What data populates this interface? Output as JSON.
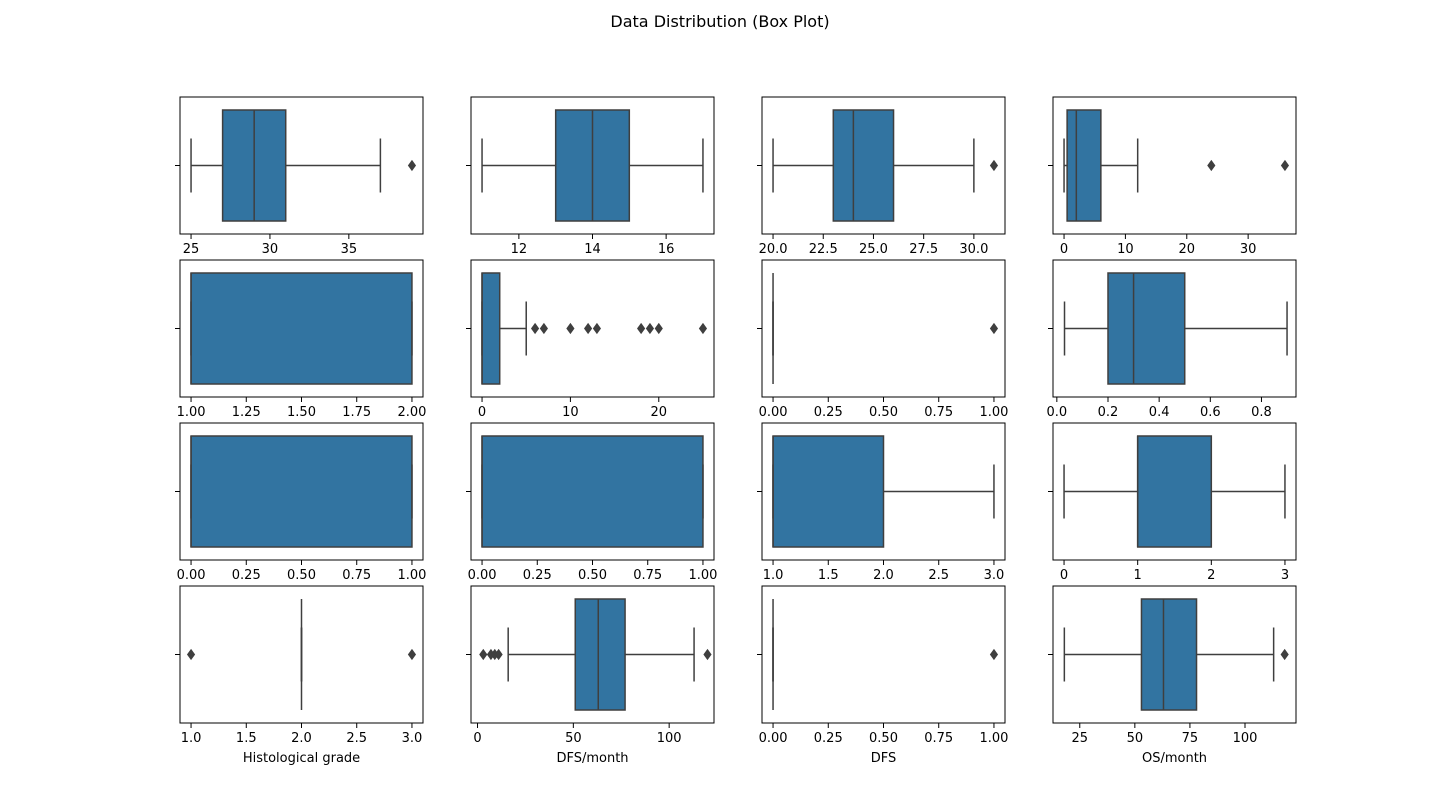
{
  "title": "Data Distribution (Box Plot)",
  "colors": {
    "box_fill": "#3274a1",
    "line": "#3f3f3f",
    "frame": "#000000"
  },
  "chart_data": [
    {
      "type": "box",
      "xlabel": "",
      "xlim": [
        24.3,
        39.7
      ],
      "ticks": [
        25,
        30,
        35
      ],
      "tick_labels": [
        "25",
        "30",
        "35"
      ],
      "whisker_low": 25,
      "q1": 27,
      "median": 29,
      "q3": 31,
      "whisker_high": 37,
      "outliers": [
        39
      ]
    },
    {
      "type": "box",
      "xlabel": "",
      "xlim": [
        10.7,
        17.3
      ],
      "ticks": [
        12,
        14,
        16
      ],
      "tick_labels": [
        "12",
        "14",
        "16"
      ],
      "whisker_low": 11,
      "q1": 13,
      "median": 14,
      "q3": 15,
      "whisker_high": 17,
      "outliers": []
    },
    {
      "type": "box",
      "xlabel": "",
      "xlim": [
        19.45,
        31.55
      ],
      "ticks": [
        20,
        22.5,
        25,
        27.5,
        30
      ],
      "tick_labels": [
        "20.0",
        "22.5",
        "25.0",
        "27.5",
        "30.0"
      ],
      "whisker_low": 20,
      "q1": 23,
      "median": 24,
      "q3": 26,
      "whisker_high": 30,
      "outliers": [
        31
      ]
    },
    {
      "type": "box",
      "xlabel": "",
      "xlim": [
        -1.8,
        37.8
      ],
      "ticks": [
        0,
        10,
        20,
        30
      ],
      "tick_labels": [
        "0",
        "10",
        "20",
        "30"
      ],
      "whisker_low": 0,
      "q1": 0.5,
      "median": 2,
      "q3": 6,
      "whisker_high": 12,
      "outliers": [
        24,
        36
      ]
    },
    {
      "type": "box",
      "xlabel": "",
      "xlim": [
        0.95,
        2.05
      ],
      "ticks": [
        1,
        1.25,
        1.5,
        1.75,
        2
      ],
      "tick_labels": [
        "1.00",
        "1.25",
        "1.50",
        "1.75",
        "2.00"
      ],
      "whisker_low": 1,
      "q1": 1,
      "median": 1,
      "q3": 2,
      "whisker_high": 2,
      "outliers": []
    },
    {
      "type": "box",
      "xlabel": "",
      "xlim": [
        -1.25,
        26.25
      ],
      "ticks": [
        0,
        10,
        20
      ],
      "tick_labels": [
        "0",
        "10",
        "20"
      ],
      "whisker_low": 0,
      "q1": 0,
      "median": 0,
      "q3": 2,
      "whisker_high": 5,
      "outliers": [
        6,
        7,
        10,
        12,
        13,
        18,
        19,
        20,
        25
      ]
    },
    {
      "type": "box",
      "xlabel": "",
      "xlim": [
        -0.05,
        1.05
      ],
      "ticks": [
        0,
        0.25,
        0.5,
        0.75,
        1
      ],
      "tick_labels": [
        "0.00",
        "0.25",
        "0.50",
        "0.75",
        "1.00"
      ],
      "whisker_low": 0,
      "q1": 0,
      "median": 0,
      "q3": 0,
      "whisker_high": 0,
      "outliers": [
        1
      ]
    },
    {
      "type": "box",
      "xlabel": "",
      "xlim": [
        -0.015,
        0.935
      ],
      "ticks": [
        0,
        0.2,
        0.4,
        0.6,
        0.8
      ],
      "tick_labels": [
        "0.0",
        "0.2",
        "0.4",
        "0.6",
        "0.8"
      ],
      "whisker_low": 0.03,
      "q1": 0.2,
      "median": 0.3,
      "q3": 0.5,
      "whisker_high": 0.9,
      "outliers": []
    },
    {
      "type": "box",
      "xlabel": "",
      "xlim": [
        -0.05,
        1.05
      ],
      "ticks": [
        0,
        0.25,
        0.5,
        0.75,
        1
      ],
      "tick_labels": [
        "0.00",
        "0.25",
        "0.50",
        "0.75",
        "1.00"
      ],
      "whisker_low": 0,
      "q1": 0,
      "median": 0,
      "q3": 1,
      "whisker_high": 1,
      "outliers": []
    },
    {
      "type": "box",
      "xlabel": "",
      "xlim": [
        -0.05,
        1.05
      ],
      "ticks": [
        0,
        0.25,
        0.5,
        0.75,
        1
      ],
      "tick_labels": [
        "0.00",
        "0.25",
        "0.50",
        "0.75",
        "1.00"
      ],
      "whisker_low": 0,
      "q1": 0,
      "median": 0,
      "q3": 1,
      "whisker_high": 1,
      "outliers": []
    },
    {
      "type": "box",
      "xlabel": "",
      "xlim": [
        0.9,
        3.1
      ],
      "ticks": [
        1,
        1.5,
        2,
        2.5,
        3
      ],
      "tick_labels": [
        "1.0",
        "1.5",
        "2.0",
        "2.5",
        "3.0"
      ],
      "whisker_low": 1,
      "q1": 1,
      "median": 1,
      "q3": 2,
      "whisker_high": 3,
      "outliers": []
    },
    {
      "type": "box",
      "xlabel": "",
      "xlim": [
        -0.15,
        3.15
      ],
      "ticks": [
        0,
        1,
        2,
        3
      ],
      "tick_labels": [
        "0",
        "1",
        "2",
        "3"
      ],
      "whisker_low": 0,
      "q1": 1,
      "median": 1,
      "q3": 2,
      "whisker_high": 3,
      "outliers": []
    },
    {
      "type": "box",
      "xlabel": "Histological grade",
      "xlim": [
        0.9,
        3.1
      ],
      "ticks": [
        1,
        1.5,
        2,
        2.5,
        3
      ],
      "tick_labels": [
        "1.0",
        "1.5",
        "2.0",
        "2.5",
        "3.0"
      ],
      "whisker_low": 2,
      "q1": 2,
      "median": 2,
      "q3": 2,
      "whisker_high": 2,
      "outliers": [
        1,
        3
      ]
    },
    {
      "type": "box",
      "xlabel": "DFS/month",
      "xlim": [
        -3.4,
        123.4
      ],
      "ticks": [
        0,
        50,
        100
      ],
      "tick_labels": [
        "0",
        "50",
        "100"
      ],
      "whisker_low": 16,
      "q1": 51,
      "median": 63,
      "q3": 77,
      "whisker_high": 113,
      "outliers": [
        3,
        7,
        9,
        11,
        120
      ]
    },
    {
      "type": "box",
      "xlabel": "DFS",
      "xlim": [
        -0.05,
        1.05
      ],
      "ticks": [
        0,
        0.25,
        0.5,
        0.75,
        1
      ],
      "tick_labels": [
        "0.00",
        "0.25",
        "0.50",
        "0.75",
        "1.00"
      ],
      "whisker_low": 0,
      "q1": 0,
      "median": 0,
      "q3": 0,
      "whisker_high": 0,
      "outliers": [
        1
      ]
    },
    {
      "type": "box",
      "xlabel": "OS/month",
      "xlim": [
        12.85,
        123.15
      ],
      "ticks": [
        25,
        50,
        75,
        100
      ],
      "tick_labels": [
        "25",
        "50",
        "75",
        "100"
      ],
      "whisker_low": 18,
      "q1": 53,
      "median": 63,
      "q3": 78,
      "whisker_high": 113,
      "outliers": [
        118
      ]
    }
  ]
}
